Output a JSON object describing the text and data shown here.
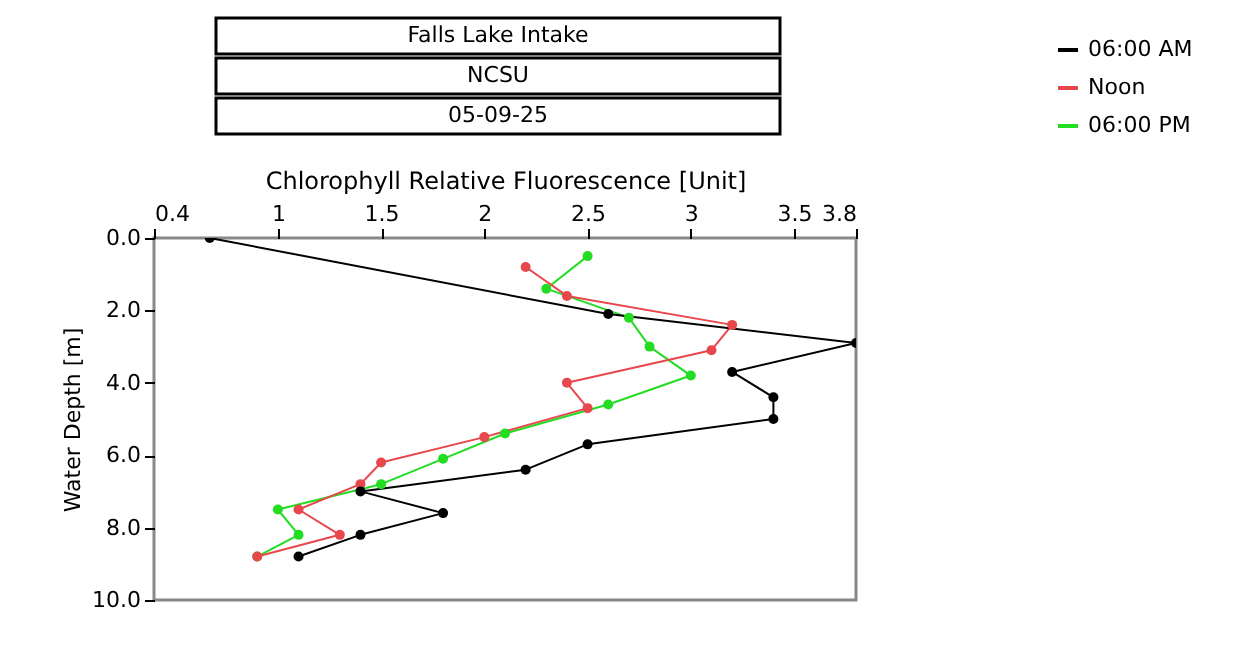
{
  "chart_data": {
    "type": "line",
    "title": "Falls Lake Intake",
    "subtitle": "NCSU",
    "annotations": [
      "05-09-25"
    ],
    "xlabel": "Chlorophyll Relative Fluorescence [Unit]",
    "ylabel": "Water Depth [m]",
    "xlim": [
      0.4,
      3.8
    ],
    "xticks": [
      0.4,
      1,
      1.5,
      2,
      2.5,
      3,
      3.5,
      3.8
    ],
    "ylim": [
      10,
      0
    ],
    "yticks": [
      {
        "value": 0,
        "label": "0.0"
      },
      {
        "value": 2,
        "label": "2.0"
      },
      {
        "value": 4,
        "label": "4.0"
      },
      {
        "value": 6,
        "label": "6.0"
      },
      {
        "value": 8,
        "label": "8.0"
      },
      {
        "value": 10,
        "label": "10.0"
      }
    ],
    "series": [
      {
        "name": "06:00 AM",
        "color": "#000000",
        "x": [
          0.67,
          2.6,
          3.8,
          3.2,
          3.4,
          3.4,
          2.5,
          2.2,
          1.4,
          1.8,
          1.4,
          1.1
        ],
        "values": [
          0,
          2.1,
          2.9,
          3.7,
          4.4,
          5.0,
          5.7,
          6.4,
          7.0,
          7.6,
          8.2,
          8.8
        ]
      },
      {
        "name": "Noon",
        "color": "#e8474c",
        "x": [
          2.2,
          2.4,
          3.2,
          3.1,
          2.4,
          2.5,
          2.0,
          1.5,
          1.4,
          1.1,
          1.3,
          0.9
        ],
        "values": [
          0.8,
          1.6,
          2.4,
          3.1,
          4.0,
          4.7,
          5.5,
          6.2,
          6.8,
          7.5,
          8.2,
          8.8
        ]
      },
      {
        "name": "06:00 PM",
        "color": "#22dd22",
        "x": [
          2.5,
          2.3,
          2.7,
          2.8,
          3.0,
          2.6,
          2.1,
          1.8,
          1.5,
          1.0,
          1.1,
          0.9
        ],
        "values": [
          0.5,
          1.4,
          2.2,
          3.0,
          3.8,
          4.6,
          5.4,
          6.1,
          6.8,
          7.5,
          8.2,
          8.8
        ]
      }
    ],
    "marker": "circle",
    "line_style": "solid",
    "legend": "top right",
    "grid": false
  }
}
